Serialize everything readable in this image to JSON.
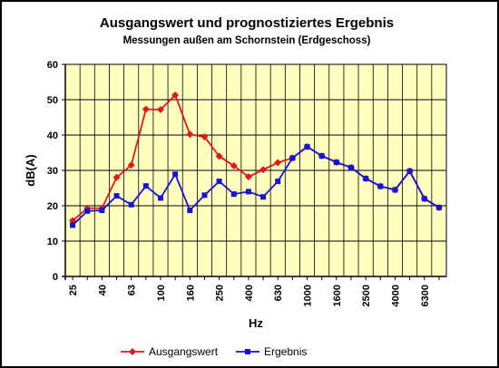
{
  "chart_data": {
    "type": "line",
    "title": "Ausgangswert und prognostiziertes Ergebnis",
    "subtitle": "Messungen außen am Schornstein (Erdgeschoss)",
    "xlabel": "Hz",
    "ylabel": "dB(A)",
    "ylim": [
      0,
      60
    ],
    "yticks": [
      "0",
      "10",
      "20",
      "30",
      "40",
      "50",
      "60"
    ],
    "grid": true,
    "legend_position": "bottom",
    "x": [
      "25",
      "31.5",
      "40",
      "50",
      "63",
      "80",
      "100",
      "125",
      "160",
      "200",
      "250",
      "315",
      "400",
      "500",
      "630",
      "800",
      "1000",
      "1250",
      "1600",
      "2000",
      "2500",
      "3150",
      "4000",
      "5000",
      "6300",
      "8000"
    ],
    "x_tick_labels": [
      "25",
      "40",
      "63",
      "100",
      "160",
      "250",
      "400",
      "630",
      "1000",
      "1600",
      "2500",
      "4000",
      "6300"
    ],
    "series": [
      {
        "name": "Ausgangswert",
        "color": "#e8141c",
        "marker": "diamond",
        "values": [
          15.8,
          19.3,
          19.3,
          28.0,
          31.5,
          47.3,
          47.2,
          51.3,
          40.2,
          39.5,
          34.0,
          31.3,
          28.2,
          30.2,
          32.2,
          33.5,
          36.7,
          34.1,
          32.3,
          30.8,
          27.7,
          25.5,
          24.5,
          29.8,
          22.0,
          19.5
        ]
      },
      {
        "name": "Ergebnis",
        "color": "#1414d6",
        "marker": "square",
        "values": [
          14.5,
          18.5,
          18.7,
          22.8,
          20.3,
          25.6,
          22.2,
          28.9,
          18.7,
          23.0,
          26.9,
          23.3,
          24.0,
          22.5,
          26.9,
          33.5,
          36.7,
          34.1,
          32.3,
          30.8,
          27.7,
          25.5,
          24.5,
          29.8,
          22.0,
          19.5
        ]
      }
    ]
  }
}
